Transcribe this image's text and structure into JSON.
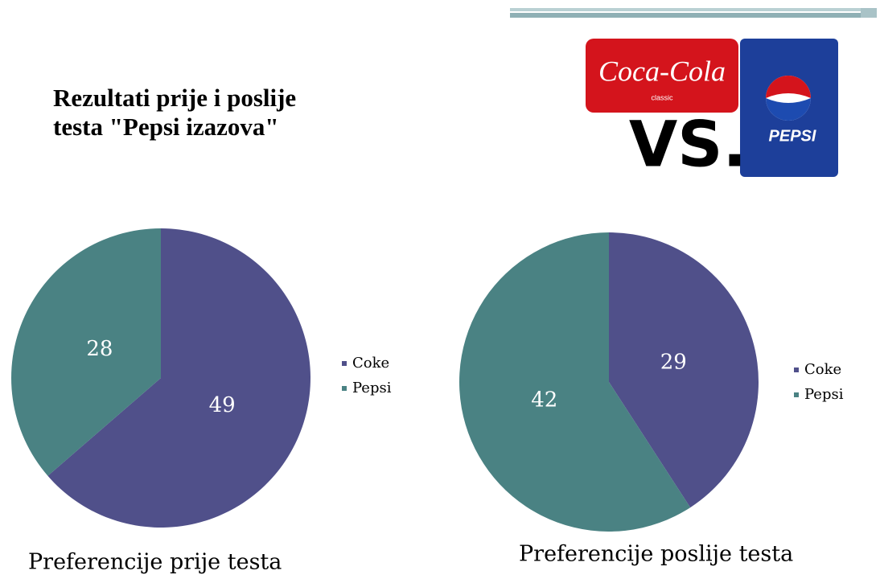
{
  "title": "Rezultati prije i poslije testa \"Pepsi izazova\"",
  "logo": {
    "brand_1": "Coca-Cola",
    "tagline": "classic",
    "versus": "VS.",
    "brand_2": "PEPSI"
  },
  "chart_data": [
    {
      "type": "pie",
      "title": "Preferencije prije testa",
      "categories": [
        "Coke",
        "Pepsi"
      ],
      "values": [
        49,
        28
      ],
      "colors": [
        "#50508a",
        "#4a8283"
      ],
      "legend": "right"
    },
    {
      "type": "pie",
      "title": "Preferencije poslije testa",
      "categories": [
        "Coke",
        "Pepsi"
      ],
      "values": [
        29,
        42
      ],
      "colors": [
        "#50508a",
        "#4a8283"
      ],
      "legend": "right"
    }
  ]
}
